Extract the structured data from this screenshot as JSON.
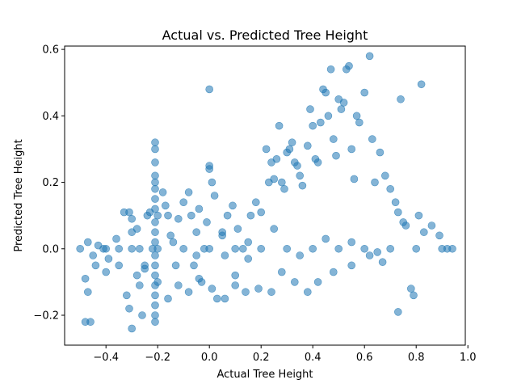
{
  "chart_data": {
    "type": "scatter",
    "title": "Actual vs. Predicted Tree Height",
    "xlabel": "Actual Tree Height",
    "ylabel": "Predicted Tree Height",
    "xlim": [
      -0.56,
      0.99
    ],
    "ylim": [
      -0.29,
      0.61
    ],
    "xticks": [
      -0.4,
      -0.2,
      0.0,
      0.2,
      0.4,
      0.6,
      0.8,
      1.0
    ],
    "xtick_labels": [
      "−0.4",
      "−0.2",
      "0.0",
      "0.2",
      "0.4",
      "0.6",
      "0.8",
      "1.0"
    ],
    "yticks": [
      -0.2,
      0.0,
      0.2,
      0.4,
      0.6
    ],
    "ytick_labels": [
      "−0.2",
      "0.0",
      "0.2",
      "0.4",
      "0.6"
    ],
    "grid": false,
    "legend": "none",
    "marker_color": "#1f77b4",
    "marker_alpha": 0.55,
    "points": [
      [
        -0.5,
        0.0
      ],
      [
        -0.47,
        0.02
      ],
      [
        -0.45,
        -0.02
      ],
      [
        -0.43,
        0.01
      ],
      [
        -0.41,
        0.0
      ],
      [
        -0.39,
        -0.03
      ],
      [
        -0.36,
        0.03
      ],
      [
        -0.35,
        0.0
      ],
      [
        -0.33,
        0.11
      ],
      [
        -0.31,
        0.11
      ],
      [
        -0.3,
        0.09
      ],
      [
        -0.3,
        0.05
      ],
      [
        -0.28,
        0.06
      ],
      [
        -0.27,
        0.0
      ],
      [
        -0.25,
        -0.05
      ],
      [
        -0.24,
        0.1
      ],
      [
        -0.23,
        0.11
      ],
      [
        -0.22,
        0.0
      ],
      [
        -0.21,
        0.32
      ],
      [
        -0.21,
        0.3
      ],
      [
        -0.21,
        0.26
      ],
      [
        -0.21,
        0.22
      ],
      [
        -0.21,
        0.2
      ],
      [
        -0.21,
        0.18
      ],
      [
        -0.21,
        0.15
      ],
      [
        -0.21,
        0.12
      ],
      [
        -0.21,
        0.08
      ],
      [
        -0.21,
        0.05
      ],
      [
        -0.21,
        0.02
      ],
      [
        -0.21,
        -0.02
      ],
      [
        -0.21,
        -0.05
      ],
      [
        -0.21,
        -0.08
      ],
      [
        -0.21,
        -0.11
      ],
      [
        -0.21,
        -0.14
      ],
      [
        -0.21,
        -0.17
      ],
      [
        -0.21,
        -0.2
      ],
      [
        -0.21,
        -0.22
      ],
      [
        -0.2,
        0.1
      ],
      [
        -0.2,
        -0.1
      ],
      [
        -0.2,
        0.0
      ],
      [
        -0.48,
        -0.09
      ],
      [
        -0.47,
        -0.13
      ],
      [
        -0.48,
        -0.22
      ],
      [
        -0.46,
        -0.22
      ],
      [
        -0.32,
        -0.14
      ],
      [
        -0.31,
        -0.18
      ],
      [
        -0.3,
        -0.24
      ],
      [
        -0.27,
        -0.11
      ],
      [
        -0.26,
        -0.2
      ],
      [
        -0.18,
        0.17
      ],
      [
        -0.17,
        0.13
      ],
      [
        -0.16,
        0.1
      ],
      [
        -0.14,
        0.02
      ],
      [
        -0.13,
        -0.05
      ],
      [
        -0.12,
        0.09
      ],
      [
        -0.1,
        0.14
      ],
      [
        -0.08,
        0.17
      ],
      [
        -0.07,
        0.1
      ],
      [
        -0.06,
        -0.05
      ],
      [
        -0.05,
        0.05
      ],
      [
        -0.04,
        0.12
      ],
      [
        -0.03,
        -0.1
      ],
      [
        -0.02,
        0.0
      ],
      [
        -0.01,
        0.08
      ],
      [
        0.0,
        0.48
      ],
      [
        0.0,
        0.24
      ],
      [
        0.0,
        0.25
      ],
      [
        0.01,
        0.2
      ],
      [
        0.02,
        0.16
      ],
      [
        0.03,
        -0.15
      ],
      [
        0.05,
        0.04
      ],
      [
        0.06,
        -0.02
      ],
      [
        0.07,
        0.1
      ],
      [
        0.09,
        0.13
      ],
      [
        0.1,
        -0.08
      ],
      [
        0.11,
        0.06
      ],
      [
        0.13,
        0.0
      ],
      [
        0.15,
        0.02
      ],
      [
        0.16,
        0.1
      ],
      [
        0.18,
        0.14
      ],
      [
        0.2,
        0.11
      ],
      [
        0.22,
        0.3
      ],
      [
        0.23,
        0.2
      ],
      [
        0.24,
        0.26
      ],
      [
        0.25,
        0.21
      ],
      [
        0.26,
        0.27
      ],
      [
        0.27,
        0.37
      ],
      [
        0.28,
        0.2
      ],
      [
        0.29,
        0.18
      ],
      [
        0.3,
        0.29
      ],
      [
        0.31,
        0.3
      ],
      [
        0.32,
        0.32
      ],
      [
        0.33,
        0.26
      ],
      [
        0.34,
        0.25
      ],
      [
        0.35,
        0.22
      ],
      [
        0.36,
        0.19
      ],
      [
        0.38,
        0.31
      ],
      [
        0.39,
        0.42
      ],
      [
        0.4,
        0.37
      ],
      [
        0.41,
        0.27
      ],
      [
        0.42,
        0.26
      ],
      [
        0.43,
        0.38
      ],
      [
        0.44,
        0.48
      ],
      [
        0.45,
        0.47
      ],
      [
        0.46,
        0.4
      ],
      [
        0.47,
        0.54
      ],
      [
        0.48,
        0.33
      ],
      [
        0.49,
        0.28
      ],
      [
        0.5,
        0.45
      ],
      [
        0.51,
        0.42
      ],
      [
        0.52,
        0.44
      ],
      [
        0.53,
        0.54
      ],
      [
        0.54,
        0.55
      ],
      [
        0.55,
        0.3
      ],
      [
        0.56,
        0.21
      ],
      [
        0.57,
        0.4
      ],
      [
        0.58,
        0.38
      ],
      [
        0.6,
        0.47
      ],
      [
        0.62,
        0.58
      ],
      [
        0.63,
        0.33
      ],
      [
        0.64,
        0.2
      ],
      [
        0.66,
        0.29
      ],
      [
        0.68,
        0.22
      ],
      [
        0.7,
        0.18
      ],
      [
        0.72,
        0.14
      ],
      [
        0.73,
        0.11
      ],
      [
        0.74,
        0.45
      ],
      [
        0.75,
        0.08
      ],
      [
        0.76,
        0.07
      ],
      [
        0.78,
        -0.12
      ],
      [
        0.79,
        -0.14
      ],
      [
        0.81,
        0.1
      ],
      [
        0.82,
        0.495
      ],
      [
        0.83,
        0.05
      ],
      [
        0.86,
        0.07
      ],
      [
        0.89,
        0.04
      ],
      [
        0.92,
        0.0
      ],
      [
        0.94,
        0.0
      ],
      [
        0.73,
        -0.19
      ],
      [
        0.67,
        -0.04
      ],
      [
        0.62,
        -0.02
      ],
      [
        0.55,
        -0.05
      ],
      [
        0.48,
        -0.07
      ],
      [
        0.42,
        -0.1
      ],
      [
        0.38,
        -0.13
      ],
      [
        0.33,
        -0.1
      ],
      [
        0.28,
        -0.07
      ],
      [
        0.24,
        -0.13
      ],
      [
        0.19,
        -0.12
      ],
      [
        0.14,
        -0.13
      ],
      [
        0.1,
        -0.11
      ],
      [
        0.06,
        -0.15
      ],
      [
        0.01,
        -0.12
      ],
      [
        -0.04,
        -0.09
      ],
      [
        -0.08,
        -0.13
      ],
      [
        -0.12,
        -0.11
      ],
      [
        -0.16,
        -0.15
      ],
      [
        -0.25,
        -0.06
      ],
      [
        -0.28,
        -0.08
      ],
      [
        -0.35,
        -0.05
      ],
      [
        -0.4,
        -0.07
      ],
      [
        -0.44,
        -0.05
      ],
      [
        -0.1,
        0.0
      ],
      [
        0.0,
        0.0
      ],
      [
        0.1,
        0.0
      ],
      [
        0.2,
        0.0
      ],
      [
        0.3,
        0.0
      ],
      [
        0.4,
        0.0
      ],
      [
        0.5,
        0.0
      ],
      [
        0.6,
        0.0
      ],
      [
        0.7,
        0.0
      ],
      [
        0.8,
        0.0
      ],
      [
        0.9,
        0.0
      ],
      [
        -0.3,
        0.0
      ],
      [
        -0.4,
        0.0
      ],
      [
        -0.15,
        0.04
      ],
      [
        -0.05,
        -0.02
      ],
      [
        0.05,
        0.05
      ],
      [
        0.15,
        -0.03
      ],
      [
        0.25,
        0.06
      ],
      [
        0.35,
        -0.02
      ],
      [
        0.45,
        0.03
      ],
      [
        0.55,
        0.02
      ],
      [
        0.65,
        -0.01
      ]
    ]
  }
}
